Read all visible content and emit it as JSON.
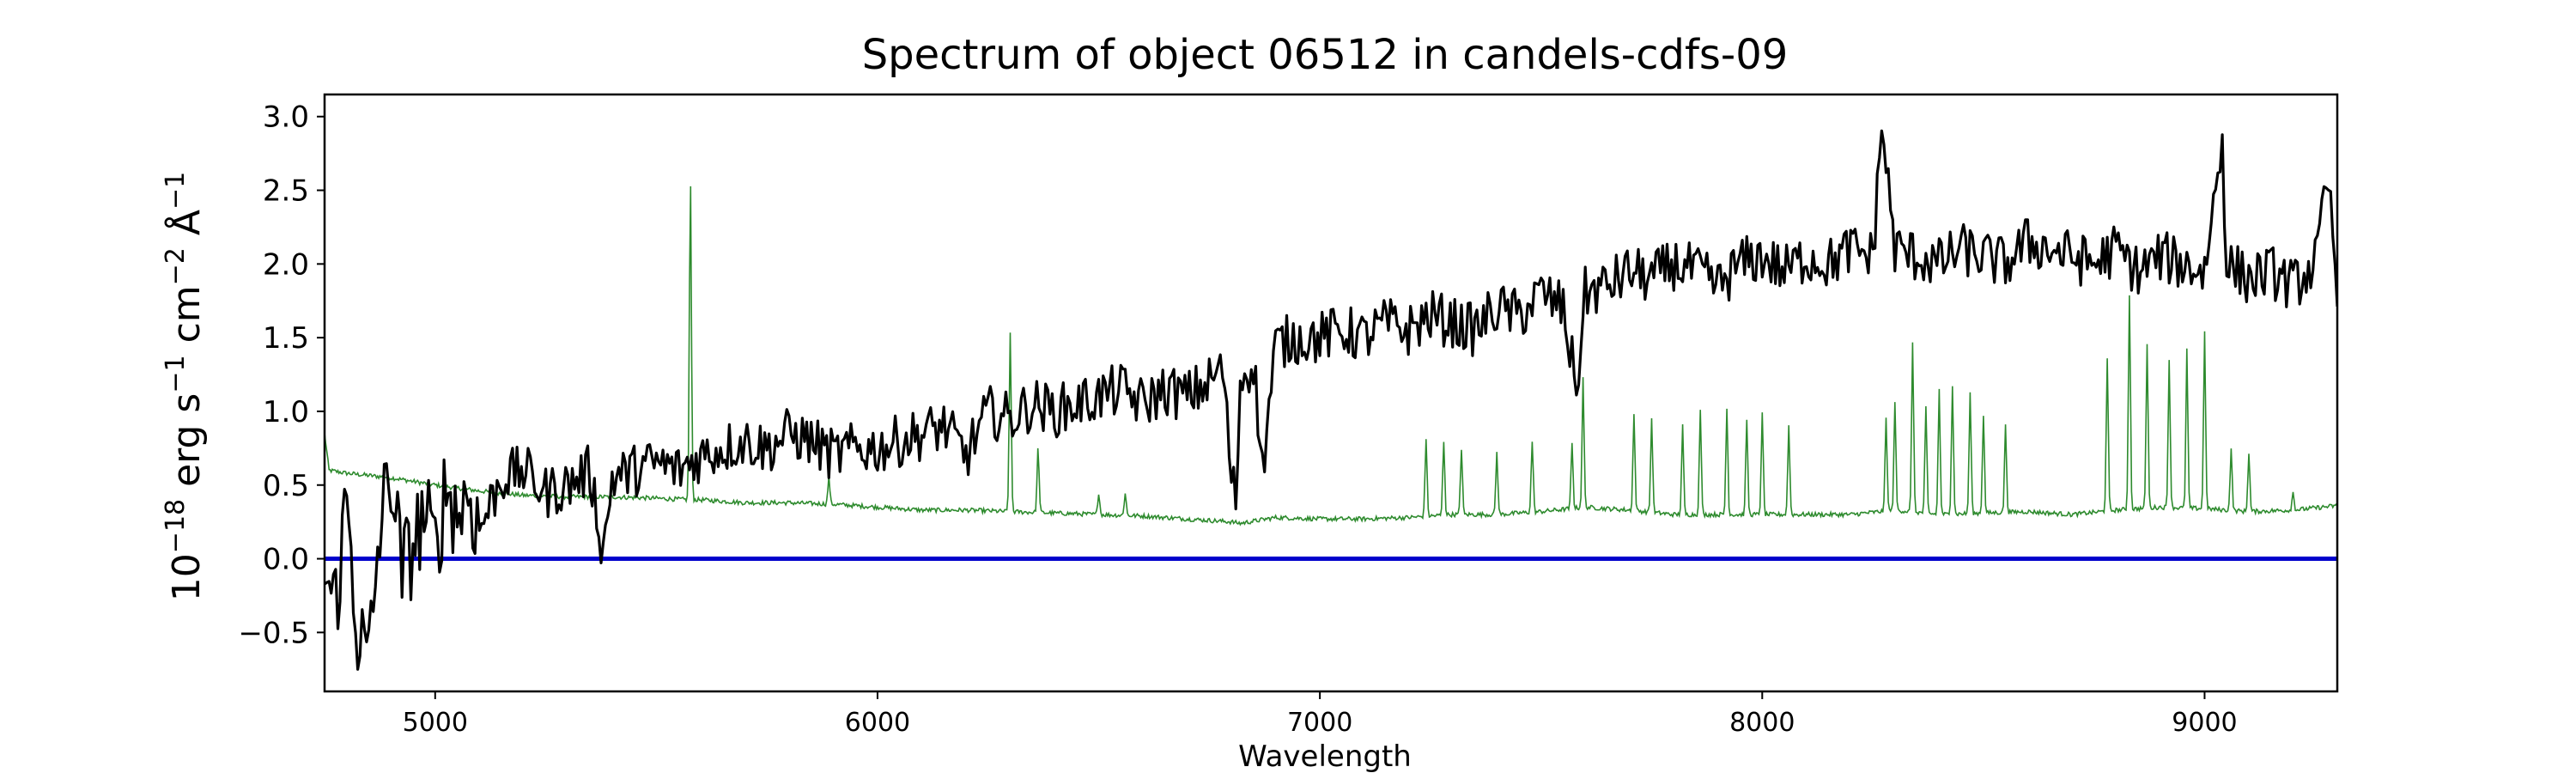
{
  "chart_data": {
    "type": "line",
    "title": "Spectrum of object 06512 in candels-cdfs-09",
    "xlabel": "Wavelength",
    "ylabel": {
      "base": "10",
      "exp_a": "−18",
      "mid_a": " erg s",
      "exp_b": "−1",
      "mid_b": " cm",
      "exp_c": "−2",
      "mid_c": " Å",
      "exp_d": "−1"
    },
    "xlim": [
      4750,
      9300
    ],
    "ylim": [
      -0.9,
      3.15
    ],
    "x_ticks": [
      5000,
      6000,
      7000,
      8000,
      9000
    ],
    "y_ticks": [
      -0.5,
      0.0,
      0.5,
      1.0,
      1.5,
      2.0,
      2.5,
      3.0
    ],
    "x_tick_labels": [
      "5000",
      "6000",
      "7000",
      "8000",
      "9000"
    ],
    "y_tick_labels": [
      "−0.5",
      "0.0",
      "0.5",
      "1.0",
      "1.5",
      "2.0",
      "2.5",
      "3.0"
    ],
    "grid": false,
    "series": [
      {
        "role": "flux",
        "color": "#000000",
        "x": [
          4750,
          4775,
          4800,
          4825,
          4850,
          4875,
          4900,
          4925,
          4950,
          4975,
          5000,
          5025,
          5050,
          5075,
          5100,
          5150,
          5200,
          5250,
          5300,
          5350,
          5380,
          5400,
          5450,
          5500,
          5550,
          5600,
          5650,
          5700,
          5750,
          5800,
          5850,
          5900,
          5950,
          6000,
          6050,
          6100,
          6150,
          6200,
          6250,
          6300,
          6350,
          6400,
          6450,
          6500,
          6550,
          6600,
          6650,
          6700,
          6750,
          6780,
          6800,
          6810,
          6820,
          6830,
          6850,
          6870,
          6900,
          6950,
          7000,
          7050,
          7100,
          7150,
          7200,
          7250,
          7300,
          7350,
          7400,
          7450,
          7500,
          7550,
          7580,
          7600,
          7650,
          7700,
          7750,
          7800,
          7850,
          7900,
          7950,
          8000,
          8050,
          8100,
          8150,
          8200,
          8250,
          8270,
          8300,
          8350,
          8400,
          8450,
          8500,
          8550,
          8600,
          8650,
          8700,
          8750,
          8800,
          8850,
          8900,
          8950,
          9000,
          9040,
          9050,
          9100,
          9150,
          9200,
          9250,
          9280,
          9300
        ],
        "y": [
          -0.15,
          -0.3,
          0.4,
          -0.5,
          -0.7,
          0.2,
          0.6,
          -0.1,
          0.1,
          0.3,
          0.05,
          0.5,
          0.3,
          0.45,
          0.2,
          0.55,
          0.6,
          0.45,
          0.5,
          0.6,
          0.05,
          0.55,
          0.6,
          0.65,
          0.6,
          0.7,
          0.75,
          0.8,
          0.75,
          0.85,
          0.8,
          0.7,
          0.75,
          0.75,
          0.8,
          0.85,
          0.9,
          0.7,
          1.0,
          0.95,
          1.05,
          1.0,
          1.05,
          1.1,
          1.15,
          1.05,
          1.15,
          1.1,
          1.2,
          1.3,
          0.55,
          0.4,
          1.2,
          1.25,
          1.35,
          0.6,
          1.45,
          1.5,
          1.5,
          1.55,
          1.5,
          1.6,
          1.55,
          1.65,
          1.6,
          1.55,
          1.7,
          1.65,
          1.8,
          1.7,
          1.15,
          1.8,
          1.85,
          1.95,
          1.9,
          2.0,
          1.95,
          1.85,
          2.0,
          2.05,
          1.95,
          2.05,
          2.0,
          2.1,
          2.05,
          2.95,
          2.1,
          2.05,
          2.0,
          2.1,
          2.05,
          2.0,
          2.15,
          2.1,
          2.05,
          2.0,
          2.1,
          1.95,
          2.05,
          2.0,
          1.95,
          2.85,
          2.0,
          1.9,
          1.95,
          1.85,
          2.0,
          2.55,
          1.8
        ],
        "noise": 0.18
      },
      {
        "role": "sky",
        "color": "#2e8b2e",
        "x": [
          4750,
          4760,
          4800,
          4900,
          5000,
          5100,
          5200,
          5300,
          5400,
          5500,
          5580,
          5600,
          5700,
          5800,
          5900,
          6000,
          6100,
          6200,
          6300,
          6400,
          6500,
          6600,
          6700,
          6800,
          6820,
          6900,
          7000,
          7100,
          7200,
          7300,
          7400,
          7500,
          7600,
          7700,
          7800,
          7900,
          8000,
          8100,
          8200,
          8300,
          8400,
          8500,
          8600,
          8700,
          8800,
          8900,
          9000,
          9100,
          9200,
          9300
        ],
        "y": [
          0.85,
          0.6,
          0.58,
          0.55,
          0.5,
          0.46,
          0.43,
          0.42,
          0.42,
          0.41,
          0.4,
          0.4,
          0.38,
          0.38,
          0.37,
          0.35,
          0.33,
          0.33,
          0.32,
          0.31,
          0.3,
          0.29,
          0.27,
          0.25,
          0.24,
          0.28,
          0.27,
          0.27,
          0.28,
          0.3,
          0.3,
          0.32,
          0.35,
          0.33,
          0.3,
          0.3,
          0.3,
          0.3,
          0.3,
          0.33,
          0.3,
          0.31,
          0.32,
          0.3,
          0.33,
          0.35,
          0.34,
          0.32,
          0.33,
          0.36
        ],
        "emission_lines": [
          [
            5577,
            2.58
          ],
          [
            5890,
            0.55
          ],
          [
            6300,
            1.52
          ],
          [
            6363,
            0.75
          ],
          [
            6500,
            0.45
          ],
          [
            6560,
            0.45
          ],
          [
            7240,
            0.82
          ],
          [
            7280,
            0.8
          ],
          [
            7320,
            0.75
          ],
          [
            7400,
            0.72
          ],
          [
            7480,
            0.8
          ],
          [
            7570,
            0.78
          ],
          [
            7595,
            1.22
          ],
          [
            7710,
            0.98
          ],
          [
            7750,
            0.95
          ],
          [
            7820,
            0.9
          ],
          [
            7860,
            1.0
          ],
          [
            7920,
            1.02
          ],
          [
            7965,
            0.95
          ],
          [
            8000,
            0.98
          ],
          [
            8060,
            0.9
          ],
          [
            8280,
            0.95
          ],
          [
            8300,
            1.05
          ],
          [
            8340,
            1.48
          ],
          [
            8370,
            1.02
          ],
          [
            8400,
            1.15
          ],
          [
            8430,
            1.18
          ],
          [
            8470,
            1.12
          ],
          [
            8500,
            0.98
          ],
          [
            8550,
            0.9
          ],
          [
            8780,
            1.35
          ],
          [
            8830,
            1.8
          ],
          [
            8870,
            1.45
          ],
          [
            8920,
            1.35
          ],
          [
            8960,
            1.42
          ],
          [
            9000,
            1.55
          ],
          [
            9060,
            0.75
          ],
          [
            9100,
            0.72
          ],
          [
            9200,
            0.45
          ]
        ]
      },
      {
        "role": "zero-line",
        "color": "#0000cc",
        "x": [
          4750,
          9300
        ],
        "y": [
          0.0,
          0.0
        ]
      }
    ]
  }
}
